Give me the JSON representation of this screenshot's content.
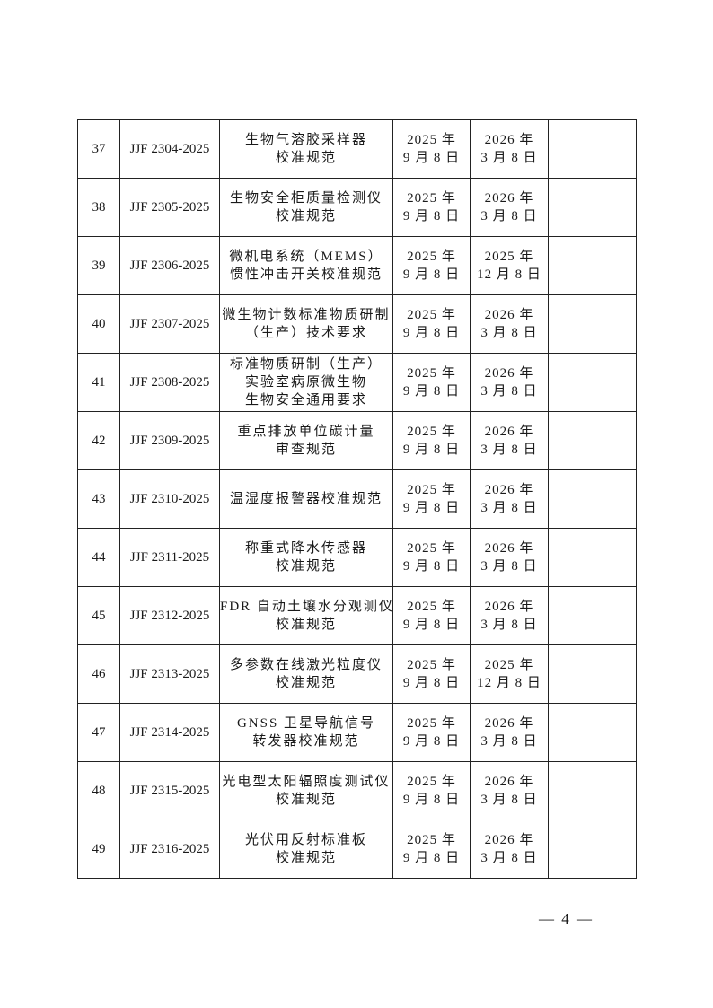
{
  "rows": [
    {
      "no": "37",
      "code": "JJF 2304-2025",
      "name": [
        "生物气溶胶采样器",
        "校准规范"
      ],
      "issue": [
        "2025 年",
        "9 月 8 日"
      ],
      "effective": [
        "2026 年",
        "3 月 8 日"
      ],
      "note": ""
    },
    {
      "no": "38",
      "code": "JJF 2305-2025",
      "name": [
        "生物安全柜质量检测仪",
        "校准规范"
      ],
      "issue": [
        "2025 年",
        "9 月 8 日"
      ],
      "effective": [
        "2026 年",
        "3 月 8 日"
      ],
      "note": ""
    },
    {
      "no": "39",
      "code": "JJF 2306-2025",
      "name": [
        "微机电系统（MEMS）",
        "惯性冲击开关校准规范"
      ],
      "issue": [
        "2025 年",
        "9 月 8 日"
      ],
      "effective": [
        "2025 年",
        "12 月 8 日"
      ],
      "note": ""
    },
    {
      "no": "40",
      "code": "JJF 2307-2025",
      "name": [
        "微生物计数标准物质研制",
        "（生产）技术要求"
      ],
      "issue": [
        "2025 年",
        "9 月 8 日"
      ],
      "effective": [
        "2026 年",
        "3 月 8 日"
      ],
      "note": ""
    },
    {
      "no": "41",
      "code": "JJF 2308-2025",
      "name": [
        "标准物质研制（生产）",
        "实验室病原微生物",
        "生物安全通用要求"
      ],
      "issue": [
        "2025 年",
        "9 月 8 日"
      ],
      "effective": [
        "2026 年",
        "3 月 8 日"
      ],
      "note": ""
    },
    {
      "no": "42",
      "code": "JJF 2309-2025",
      "name": [
        "重点排放单位碳计量",
        "审查规范"
      ],
      "issue": [
        "2025 年",
        "9 月 8 日"
      ],
      "effective": [
        "2026 年",
        "3 月 8 日"
      ],
      "note": ""
    },
    {
      "no": "43",
      "code": "JJF 2310-2025",
      "name": [
        "温湿度报警器校准规范"
      ],
      "issue": [
        "2025 年",
        "9 月 8 日"
      ],
      "effective": [
        "2026 年",
        "3 月 8 日"
      ],
      "note": ""
    },
    {
      "no": "44",
      "code": "JJF 2311-2025",
      "name": [
        "称重式降水传感器",
        "校准规范"
      ],
      "issue": [
        "2025 年",
        "9 月 8 日"
      ],
      "effective": [
        "2026 年",
        "3 月 8 日"
      ],
      "note": ""
    },
    {
      "no": "45",
      "code": "JJF 2312-2025",
      "name": [
        "FDR 自动土壤水分观测仪",
        "校准规范"
      ],
      "issue": [
        "2025 年",
        "9 月 8 日"
      ],
      "effective": [
        "2026 年",
        "3 月 8 日"
      ],
      "note": ""
    },
    {
      "no": "46",
      "code": "JJF 2313-2025",
      "name": [
        "多参数在线激光粒度仪",
        "校准规范"
      ],
      "issue": [
        "2025 年",
        "9 月 8 日"
      ],
      "effective": [
        "2025 年",
        "12 月 8 日"
      ],
      "note": ""
    },
    {
      "no": "47",
      "code": "JJF 2314-2025",
      "name": [
        "GNSS 卫星导航信号",
        "转发器校准规范"
      ],
      "issue": [
        "2025 年",
        "9 月 8 日"
      ],
      "effective": [
        "2026 年",
        "3 月 8 日"
      ],
      "note": ""
    },
    {
      "no": "48",
      "code": "JJF 2315-2025",
      "name": [
        "光电型太阳辐照度测试仪",
        "校准规范"
      ],
      "issue": [
        "2025 年",
        "9 月 8 日"
      ],
      "effective": [
        "2026 年",
        "3 月 8 日"
      ],
      "note": ""
    },
    {
      "no": "49",
      "code": "JJF 2316-2025",
      "name": [
        "光伏用反射标准板",
        "校准规范"
      ],
      "issue": [
        "2025 年",
        "9 月 8 日"
      ],
      "effective": [
        "2026 年",
        "3 月 8 日"
      ],
      "note": ""
    }
  ],
  "page_number": "— 4 —"
}
